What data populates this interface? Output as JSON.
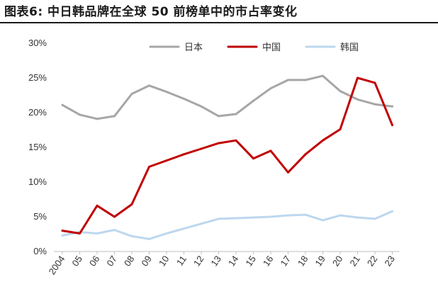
{
  "title": "图表6: 中日韩品牌在全球 50 前榜单中的市占率变化",
  "chart_data": {
    "type": "line",
    "x": [
      "2004",
      "05",
      "06",
      "07",
      "08",
      "09",
      "10",
      "11",
      "12",
      "13",
      "14",
      "15",
      "16",
      "17",
      "18",
      "19",
      "20",
      "21",
      "22",
      "23"
    ],
    "ylim": [
      0,
      30
    ],
    "yticks": [
      "0%",
      "5%",
      "10%",
      "15%",
      "20%",
      "25%",
      "30%"
    ],
    "ytick_values": [
      0,
      5,
      10,
      15,
      20,
      25,
      30
    ],
    "grid": false,
    "legend_position": "top",
    "series": [
      {
        "name": "日本",
        "color": "#a6a6a6",
        "values": [
          21.1,
          19.7,
          19.1,
          19.5,
          22.7,
          23.9,
          23.0,
          22.0,
          20.9,
          19.5,
          19.8,
          21.7,
          23.5,
          24.7,
          24.7,
          25.3,
          23.1,
          21.9,
          21.2,
          20.9
        ]
      },
      {
        "name": "中国",
        "color": "#c00000",
        "values": [
          3.0,
          2.6,
          6.6,
          5.0,
          6.8,
          12.2,
          13.1,
          14.0,
          14.8,
          15.6,
          16.0,
          13.4,
          14.5,
          11.4,
          14.0,
          16.0,
          17.6,
          25.0,
          24.3,
          18.2
        ]
      },
      {
        "name": "韩国",
        "color": "#bdd7ee",
        "values": [
          2.3,
          2.8,
          2.6,
          3.1,
          2.2,
          1.8,
          2.6,
          3.3,
          4.0,
          4.7,
          4.8,
          4.9,
          5.0,
          5.2,
          5.3,
          4.5,
          5.2,
          4.9,
          4.7,
          5.8
        ]
      }
    ]
  }
}
